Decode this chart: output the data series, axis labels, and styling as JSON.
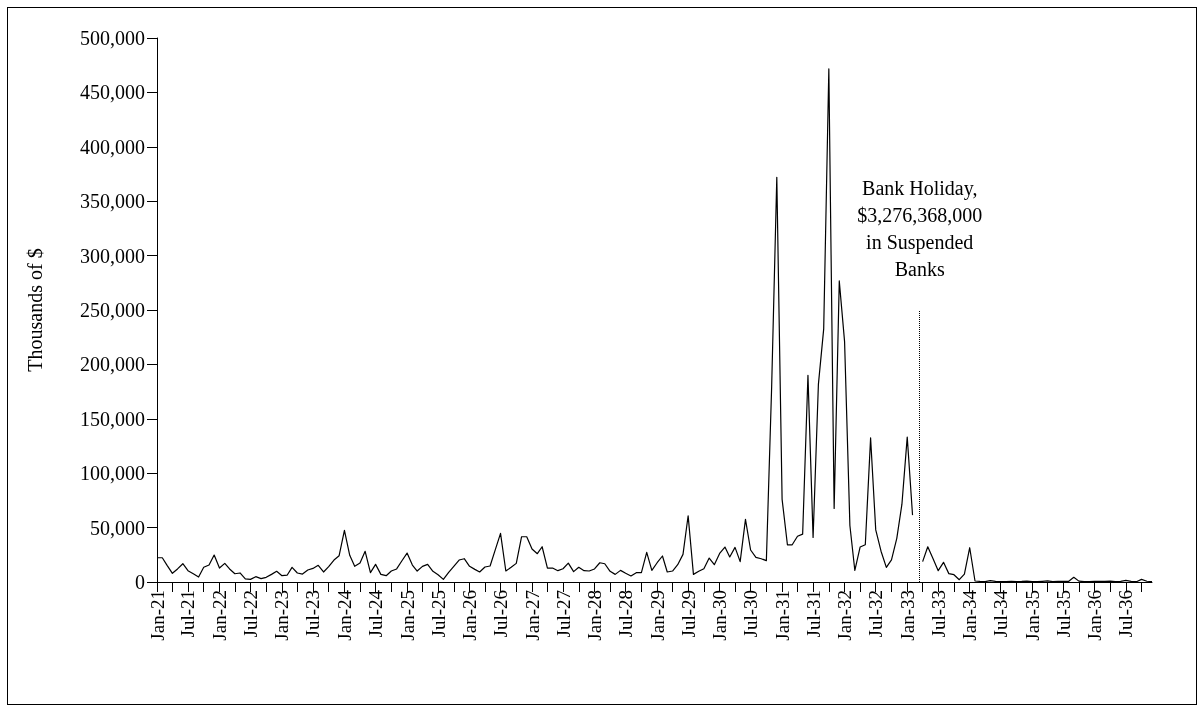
{
  "chart_data": {
    "type": "line",
    "ylabel": "Thousands of $",
    "x": [
      "1921-01",
      "1921-02",
      "1921-03",
      "1921-04",
      "1921-05",
      "1921-06",
      "1921-07",
      "1921-08",
      "1921-09",
      "1921-10",
      "1921-11",
      "1921-12",
      "1922-01",
      "1922-02",
      "1922-03",
      "1922-04",
      "1922-05",
      "1922-06",
      "1922-07",
      "1922-08",
      "1922-09",
      "1922-10",
      "1922-11",
      "1922-12",
      "1923-01",
      "1923-02",
      "1923-03",
      "1923-04",
      "1923-05",
      "1923-06",
      "1923-07",
      "1923-08",
      "1923-09",
      "1923-10",
      "1923-11",
      "1923-12",
      "1924-01",
      "1924-02",
      "1924-03",
      "1924-04",
      "1924-05",
      "1924-06",
      "1924-07",
      "1924-08",
      "1924-09",
      "1924-10",
      "1924-11",
      "1924-12",
      "1925-01",
      "1925-02",
      "1925-03",
      "1925-04",
      "1925-05",
      "1925-06",
      "1925-07",
      "1925-08",
      "1925-09",
      "1925-10",
      "1925-11",
      "1925-12",
      "1926-01",
      "1926-02",
      "1926-03",
      "1926-04",
      "1926-05",
      "1926-06",
      "1926-07",
      "1926-08",
      "1926-09",
      "1926-10",
      "1926-11",
      "1926-12",
      "1927-01",
      "1927-02",
      "1927-03",
      "1927-04",
      "1927-05",
      "1927-06",
      "1927-07",
      "1927-08",
      "1927-09",
      "1927-10",
      "1927-11",
      "1927-12",
      "1928-01",
      "1928-02",
      "1928-03",
      "1928-04",
      "1928-05",
      "1928-06",
      "1928-07",
      "1928-08",
      "1928-09",
      "1928-10",
      "1928-11",
      "1928-12",
      "1929-01",
      "1929-02",
      "1929-03",
      "1929-04",
      "1929-05",
      "1929-06",
      "1929-07",
      "1929-08",
      "1929-09",
      "1929-10",
      "1929-11",
      "1929-12",
      "1930-01",
      "1930-02",
      "1930-03",
      "1930-04",
      "1930-05",
      "1930-06",
      "1930-07",
      "1930-08",
      "1930-09",
      "1930-10",
      "1930-11",
      "1930-12",
      "1931-01",
      "1931-02",
      "1931-03",
      "1931-04",
      "1931-05",
      "1931-06",
      "1931-07",
      "1931-08",
      "1931-09",
      "1931-10",
      "1931-11",
      "1931-12",
      "1932-01",
      "1932-02",
      "1932-03",
      "1932-04",
      "1932-05",
      "1932-06",
      "1932-07",
      "1932-08",
      "1932-09",
      "1932-10",
      "1932-11",
      "1932-12",
      "1933-01",
      "1933-02",
      "1933-03",
      "1933-04",
      "1933-05",
      "1933-06",
      "1933-07",
      "1933-08",
      "1933-09",
      "1933-10",
      "1933-11",
      "1933-12",
      "1934-01",
      "1934-02",
      "1934-03",
      "1934-04",
      "1934-05",
      "1934-06",
      "1934-07",
      "1934-08",
      "1934-09",
      "1934-10",
      "1934-11",
      "1934-12",
      "1935-01",
      "1935-02",
      "1935-03",
      "1935-04",
      "1935-05",
      "1935-06",
      "1935-07",
      "1935-08",
      "1935-09",
      "1935-10",
      "1935-11",
      "1935-12",
      "1936-01",
      "1936-02",
      "1936-03",
      "1936-04",
      "1936-05",
      "1936-06",
      "1936-07",
      "1936-08",
      "1936-09",
      "1936-10",
      "1936-11",
      "1936-12"
    ],
    "series": [
      {
        "color": "#000000",
        "values": [
          22300,
          22300,
          15300,
          8000,
          12000,
          16800,
          10400,
          7600,
          4600,
          13500,
          15600,
          24800,
          12800,
          17100,
          12000,
          7600,
          8300,
          2800,
          2400,
          4900,
          3100,
          4300,
          7000,
          9800,
          5800,
          6400,
          13500,
          8300,
          7300,
          11000,
          12500,
          15300,
          9200,
          14100,
          20200,
          24200,
          47400,
          24500,
          14400,
          17400,
          28200,
          8600,
          16200,
          7000,
          5800,
          10100,
          12000,
          19300,
          26600,
          15600,
          10100,
          14400,
          16200,
          9800,
          6700,
          2400,
          8900,
          14400,
          20200,
          21400,
          14400,
          11600,
          9200,
          13800,
          14700,
          30000,
          44700,
          10100,
          13500,
          17100,
          41600,
          41600,
          30300,
          26000,
          32400,
          12800,
          12800,
          10400,
          12200,
          17400,
          9500,
          13500,
          10400,
          10100,
          12000,
          17700,
          16800,
          9800,
          7000,
          10700,
          8000,
          5500,
          8600,
          8600,
          27200,
          10700,
          17700,
          23900,
          9200,
          10100,
          15900,
          25400,
          60900,
          7000,
          9800,
          12200,
          22000,
          15900,
          26300,
          32100,
          23000,
          31800,
          18700,
          57500,
          29400,
          22600,
          21400,
          19600,
          179600,
          372000,
          76000,
          34200,
          34200,
          42000,
          44000,
          190000,
          40900,
          181600,
          232700,
          471600,
          67600,
          276700,
          220900,
          51900,
          10600,
          32200,
          34200,
          132400,
          47900,
          28300,
          13400,
          20400,
          40100,
          71500,
          133200,
          61500,
          null,
          18700,
          32400,
          21400,
          10400,
          18100,
          7700,
          6700,
          2100,
          7300,
          31500,
          900,
          600,
          400,
          1200,
          500,
          300,
          400,
          700,
          300,
          500,
          800,
          400,
          300,
          600,
          1000,
          400,
          700,
          500,
          500,
          4300,
          800,
          300,
          400,
          600,
          700,
          500,
          800,
          400,
          600,
          1500,
          500,
          300,
          2400,
          700,
          300
        ]
      }
    ],
    "xlim": [
      "1921-01",
      "1936-12"
    ],
    "xticks": [
      {
        "value": "1921-01",
        "label": "Jan-21"
      },
      {
        "value": "1921-04",
        "label": null
      },
      {
        "value": "1921-07",
        "label": "Jul-21"
      },
      {
        "value": "1921-10",
        "label": null
      },
      {
        "value": "1922-01",
        "label": "Jan-22"
      },
      {
        "value": "1922-04",
        "label": null
      },
      {
        "value": "1922-07",
        "label": "Jul-22"
      },
      {
        "value": "1922-10",
        "label": null
      },
      {
        "value": "1923-01",
        "label": "Jan-23"
      },
      {
        "value": "1923-04",
        "label": null
      },
      {
        "value": "1923-07",
        "label": "Jul-23"
      },
      {
        "value": "1923-10",
        "label": null
      },
      {
        "value": "1924-01",
        "label": "Jan-24"
      },
      {
        "value": "1924-04",
        "label": null
      },
      {
        "value": "1924-07",
        "label": "Jul-24"
      },
      {
        "value": "1924-10",
        "label": null
      },
      {
        "value": "1925-01",
        "label": "Jan-25"
      },
      {
        "value": "1925-04",
        "label": null
      },
      {
        "value": "1925-07",
        "label": "Jul-25"
      },
      {
        "value": "1925-10",
        "label": null
      },
      {
        "value": "1926-01",
        "label": "Jan-26"
      },
      {
        "value": "1926-04",
        "label": null
      },
      {
        "value": "1926-07",
        "label": "Jul-26"
      },
      {
        "value": "1926-10",
        "label": null
      },
      {
        "value": "1927-01",
        "label": "Jan-27"
      },
      {
        "value": "1927-04",
        "label": null
      },
      {
        "value": "1927-07",
        "label": "Jul-27"
      },
      {
        "value": "1927-10",
        "label": null
      },
      {
        "value": "1928-01",
        "label": "Jan-28"
      },
      {
        "value": "1928-04",
        "label": null
      },
      {
        "value": "1928-07",
        "label": "Jul-28"
      },
      {
        "value": "1928-10",
        "label": null
      },
      {
        "value": "1929-01",
        "label": "Jan-29"
      },
      {
        "value": "1929-04",
        "label": null
      },
      {
        "value": "1929-07",
        "label": "Jul-29"
      },
      {
        "value": "1929-10",
        "label": null
      },
      {
        "value": "1930-01",
        "label": "Jan-30"
      },
      {
        "value": "1930-04",
        "label": null
      },
      {
        "value": "1930-07",
        "label": "Jul-30"
      },
      {
        "value": "1930-10",
        "label": null
      },
      {
        "value": "1931-01",
        "label": "Jan-31"
      },
      {
        "value": "1931-04",
        "label": null
      },
      {
        "value": "1931-07",
        "label": "Jul-31"
      },
      {
        "value": "1931-10",
        "label": null
      },
      {
        "value": "1932-01",
        "label": "Jan-32"
      },
      {
        "value": "1932-04",
        "label": null
      },
      {
        "value": "1932-07",
        "label": "Jul-32"
      },
      {
        "value": "1932-10",
        "label": null
      },
      {
        "value": "1933-01",
        "label": "Jan-33"
      },
      {
        "value": "1933-04",
        "label": null
      },
      {
        "value": "1933-07",
        "label": "Jul-33"
      },
      {
        "value": "1933-10",
        "label": null
      },
      {
        "value": "1934-01",
        "label": "Jan-34"
      },
      {
        "value": "1934-04",
        "label": null
      },
      {
        "value": "1934-07",
        "label": "Jul-34"
      },
      {
        "value": "1934-10",
        "label": null
      },
      {
        "value": "1935-01",
        "label": "Jan-35"
      },
      {
        "value": "1935-04",
        "label": null
      },
      {
        "value": "1935-07",
        "label": "Jul-35"
      },
      {
        "value": "1935-10",
        "label": null
      },
      {
        "value": "1936-01",
        "label": "Jan-36"
      },
      {
        "value": "1936-04",
        "label": null
      },
      {
        "value": "1936-07",
        "label": "Jul-36"
      },
      {
        "value": "1936-10",
        "label": null
      }
    ],
    "ylim": [
      0,
      500000
    ],
    "yticks": [
      0,
      {
        "value": 50000,
        "label": "50,000"
      },
      {
        "value": 100000,
        "label": "100,000"
      },
      {
        "value": 150000,
        "label": "150,000"
      },
      {
        "value": 200000,
        "label": "200,000"
      },
      {
        "value": 250000,
        "label": "250,000"
      },
      {
        "value": 300000,
        "label": "300,000"
      },
      {
        "value": 350000,
        "label": "350,000"
      },
      {
        "value": 400000,
        "label": "400,000"
      },
      {
        "value": 450000,
        "label": "450,000"
      },
      {
        "value": 500000,
        "label": "500,000"
      }
    ],
    "ref_lines": [
      {
        "axis": "x",
        "value": "1933-03-15",
        "label": "Bank Holiday,\n$3,276,368,000\nin Suspended\nBanks",
        "line_style": "dotted"
      }
    ],
    "grid": false,
    "marker": "none",
    "line_style": "solid"
  }
}
